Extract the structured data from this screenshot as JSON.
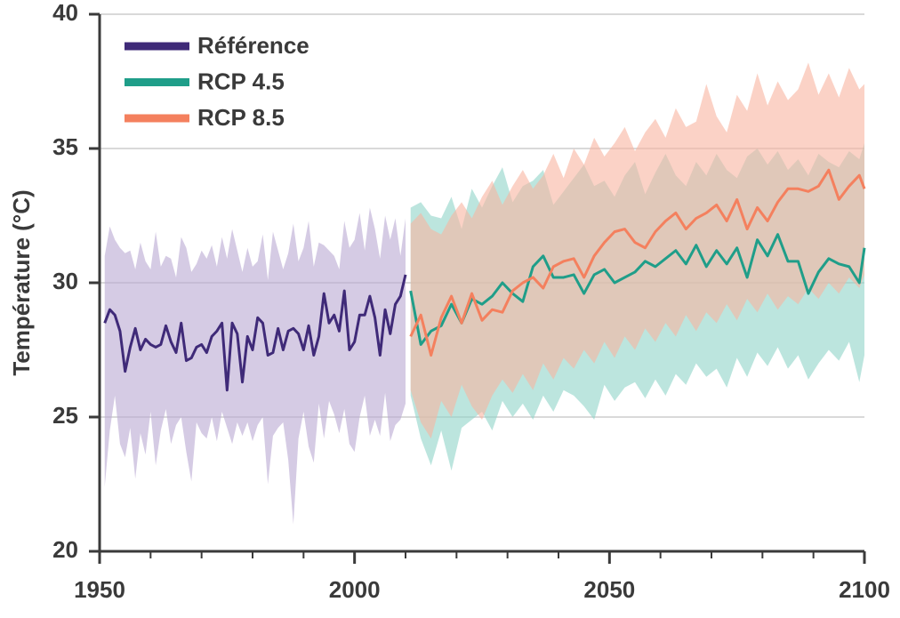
{
  "chart_data": {
    "type": "line",
    "ylabel": "Température (°C)",
    "xlim": [
      1950,
      2100
    ],
    "xticks": [
      1950,
      2000,
      2050,
      2100
    ],
    "xminorticks": [
      1960,
      1970,
      1980,
      1990,
      2010,
      2020,
      2030,
      2040,
      2060,
      2070,
      2080,
      2090
    ],
    "ylim": [
      20,
      40
    ],
    "yticks": [
      20,
      25,
      30,
      35,
      40
    ],
    "grid": true,
    "legend": "upper left",
    "series": [
      {
        "name": "Référence",
        "color": "#3f2a78",
        "band_color": "#b9a9d2",
        "x": [
          1951,
          1952,
          1953,
          1954,
          1955,
          1956,
          1957,
          1958,
          1959,
          1960,
          1961,
          1962,
          1963,
          1964,
          1965,
          1966,
          1967,
          1968,
          1969,
          1970,
          1971,
          1972,
          1973,
          1974,
          1975,
          1976,
          1977,
          1978,
          1979,
          1980,
          1981,
          1982,
          1983,
          1984,
          1985,
          1986,
          1987,
          1988,
          1989,
          1990,
          1991,
          1992,
          1993,
          1994,
          1995,
          1996,
          1997,
          1998,
          1999,
          2000,
          2001,
          2002,
          2003,
          2004,
          2005,
          2006,
          2007,
          2008,
          2009,
          2010
        ],
        "values": [
          28.5,
          29.0,
          28.8,
          28.2,
          26.7,
          27.6,
          28.3,
          27.5,
          27.9,
          27.7,
          27.6,
          27.7,
          28.4,
          27.8,
          27.4,
          28.5,
          27.1,
          27.2,
          27.6,
          27.7,
          27.4,
          28.0,
          28.2,
          28.5,
          26.0,
          28.5,
          28.1,
          26.3,
          28.0,
          27.5,
          28.7,
          28.5,
          27.3,
          27.4,
          28.3,
          27.5,
          28.2,
          28.3,
          28.1,
          27.5,
          28.4,
          27.3,
          28.0,
          29.6,
          28.5,
          28.8,
          28.2,
          29.7,
          27.5,
          27.8,
          28.8,
          28.8,
          29.5,
          28.7,
          27.3,
          29.0,
          28.1,
          29.2,
          29.5,
          30.3
        ],
        "upper": [
          31.0,
          32.1,
          31.6,
          31.3,
          31.1,
          31.2,
          30.5,
          31.5,
          30.8,
          30.5,
          31.9,
          30.6,
          31.0,
          30.9,
          30.2,
          31.7,
          31.3,
          30.4,
          30.7,
          31.2,
          30.9,
          31.4,
          30.6,
          31.7,
          30.9,
          32.0,
          31.2,
          30.4,
          31.3,
          30.6,
          30.8,
          31.8,
          30.1,
          31.9,
          31.2,
          30.5,
          31.1,
          32.2,
          30.8,
          31.3,
          32.3,
          30.6,
          31.5,
          31.4,
          31.2,
          31.0,
          30.5,
          32.3,
          31.3,
          31.6,
          32.6,
          31.2,
          32.8,
          32.0,
          30.9,
          32.5,
          31.6,
          32.4,
          31.0,
          32.4
        ],
        "lower": [
          22.4,
          24.5,
          25.8,
          24.0,
          23.5,
          24.6,
          22.7,
          24.4,
          23.6,
          25.2,
          23.2,
          24.5,
          25.3,
          24.0,
          24.7,
          25.0,
          23.7,
          22.6,
          24.8,
          24.4,
          24.2,
          25.0,
          24.1,
          25.2,
          24.6,
          24.0,
          24.8,
          24.3,
          24.8,
          24.1,
          24.7,
          25.0,
          22.5,
          24.3,
          24.6,
          24.8,
          23.4,
          21.0,
          24.2,
          25.2,
          23.9,
          23.3,
          25.5,
          24.2,
          25.6,
          25.1,
          24.4,
          25.3,
          24.0,
          23.7,
          25.0,
          25.8,
          24.3,
          24.9,
          24.3,
          25.9,
          24.1,
          24.7,
          24.9,
          25.5
        ]
      },
      {
        "name": "RCP 4.5",
        "color": "#1f9e89",
        "band_color": "#8fd3c8",
        "x": [
          2011,
          2013,
          2015,
          2017,
          2019,
          2021,
          2023,
          2025,
          2027,
          2029,
          2031,
          2033,
          2035,
          2037,
          2039,
          2041,
          2043,
          2045,
          2047,
          2049,
          2051,
          2053,
          2055,
          2057,
          2059,
          2061,
          2063,
          2065,
          2067,
          2069,
          2071,
          2073,
          2075,
          2077,
          2079,
          2081,
          2083,
          2085,
          2087,
          2089,
          2091,
          2093,
          2095,
          2097,
          2099,
          2100
        ],
        "values": [
          29.7,
          27.7,
          28.2,
          28.4,
          29.2,
          28.5,
          29.4,
          29.2,
          29.5,
          30.0,
          29.6,
          29.3,
          30.6,
          31.0,
          30.2,
          30.2,
          30.3,
          29.6,
          30.3,
          30.5,
          30.0,
          30.2,
          30.4,
          30.8,
          30.6,
          30.9,
          31.2,
          30.7,
          31.4,
          30.6,
          31.2,
          30.7,
          31.3,
          30.2,
          31.6,
          31.0,
          31.8,
          30.8,
          30.8,
          29.6,
          30.4,
          30.9,
          30.7,
          30.6,
          30.0,
          31.3
        ],
        "upper": [
          32.8,
          33.0,
          32.5,
          32.4,
          33.2,
          32.0,
          33.5,
          32.8,
          33.6,
          34.3,
          33.0,
          33.6,
          33.8,
          34.2,
          32.9,
          33.4,
          33.9,
          34.4,
          33.6,
          33.8,
          33.2,
          34.0,
          34.5,
          33.3,
          34.1,
          34.8,
          34.0,
          33.6,
          34.5,
          34.0,
          34.8,
          34.2,
          33.9,
          34.7,
          35.0,
          34.4,
          34.9,
          34.2,
          34.6,
          34.0,
          34.8,
          34.5,
          34.3,
          34.9,
          34.6,
          35.2
        ],
        "lower": [
          25.8,
          24.2,
          23.2,
          24.5,
          23.0,
          24.6,
          24.9,
          25.2,
          24.5,
          25.6,
          25.0,
          25.5,
          24.9,
          25.8,
          25.2,
          26.0,
          25.8,
          25.4,
          24.9,
          26.2,
          25.6,
          26.1,
          26.3,
          25.7,
          26.4,
          25.8,
          26.6,
          26.2,
          27.0,
          26.5,
          26.8,
          26.1,
          27.2,
          26.5,
          27.4,
          26.9,
          27.6,
          26.8,
          27.3,
          26.4,
          27.0,
          27.5,
          27.1,
          27.8,
          26.3,
          27.3
        ]
      },
      {
        "name": "RCP 8.5",
        "color": "#f4805e",
        "band_color": "#f8b4a0",
        "x": [
          2011,
          2013,
          2015,
          2017,
          2019,
          2021,
          2023,
          2025,
          2027,
          2029,
          2031,
          2033,
          2035,
          2037,
          2039,
          2041,
          2043,
          2045,
          2047,
          2049,
          2051,
          2053,
          2055,
          2057,
          2059,
          2061,
          2063,
          2065,
          2067,
          2069,
          2071,
          2073,
          2075,
          2077,
          2079,
          2081,
          2083,
          2085,
          2087,
          2089,
          2091,
          2093,
          2095,
          2097,
          2099,
          2100
        ],
        "values": [
          28.0,
          28.8,
          27.3,
          28.7,
          29.5,
          28.5,
          29.6,
          28.6,
          29.0,
          28.9,
          29.7,
          30.0,
          30.2,
          29.8,
          30.6,
          30.8,
          30.9,
          30.2,
          31.0,
          31.5,
          31.9,
          32.0,
          31.5,
          31.3,
          31.9,
          32.3,
          32.6,
          32.0,
          32.4,
          32.6,
          32.9,
          32.3,
          33.1,
          32.0,
          32.8,
          32.3,
          33.0,
          33.5,
          33.5,
          33.4,
          33.6,
          34.2,
          33.1,
          33.6,
          34.0,
          33.5
        ],
        "upper": [
          32.2,
          32.6,
          32.0,
          31.8,
          32.5,
          33.0,
          32.4,
          33.2,
          33.8,
          32.9,
          33.6,
          34.2,
          33.5,
          34.0,
          34.8,
          33.9,
          35.0,
          34.4,
          35.4,
          34.7,
          35.2,
          35.8,
          34.9,
          35.6,
          36.1,
          35.4,
          36.5,
          35.8,
          36.0,
          37.4,
          36.2,
          35.6,
          37.0,
          36.4,
          37.8,
          36.6,
          37.5,
          36.8,
          37.2,
          38.2,
          37.0,
          37.8,
          36.9,
          38.0,
          37.2,
          37.4
        ],
        "lower": [
          26.0,
          24.8,
          24.2,
          25.6,
          25.0,
          26.2,
          25.4,
          24.9,
          25.8,
          26.4,
          25.9,
          26.6,
          26.0,
          27.0,
          26.4,
          27.2,
          26.8,
          27.5,
          27.0,
          27.8,
          27.2,
          28.0,
          27.5,
          28.3,
          27.8,
          28.5,
          28.0,
          28.8,
          28.2,
          28.9,
          28.5,
          29.2,
          28.6,
          29.4,
          28.9,
          29.6,
          29.0,
          29.5,
          29.2,
          29.8,
          29.4,
          30.0,
          29.6,
          30.2,
          29.8,
          30.3
        ]
      }
    ]
  }
}
